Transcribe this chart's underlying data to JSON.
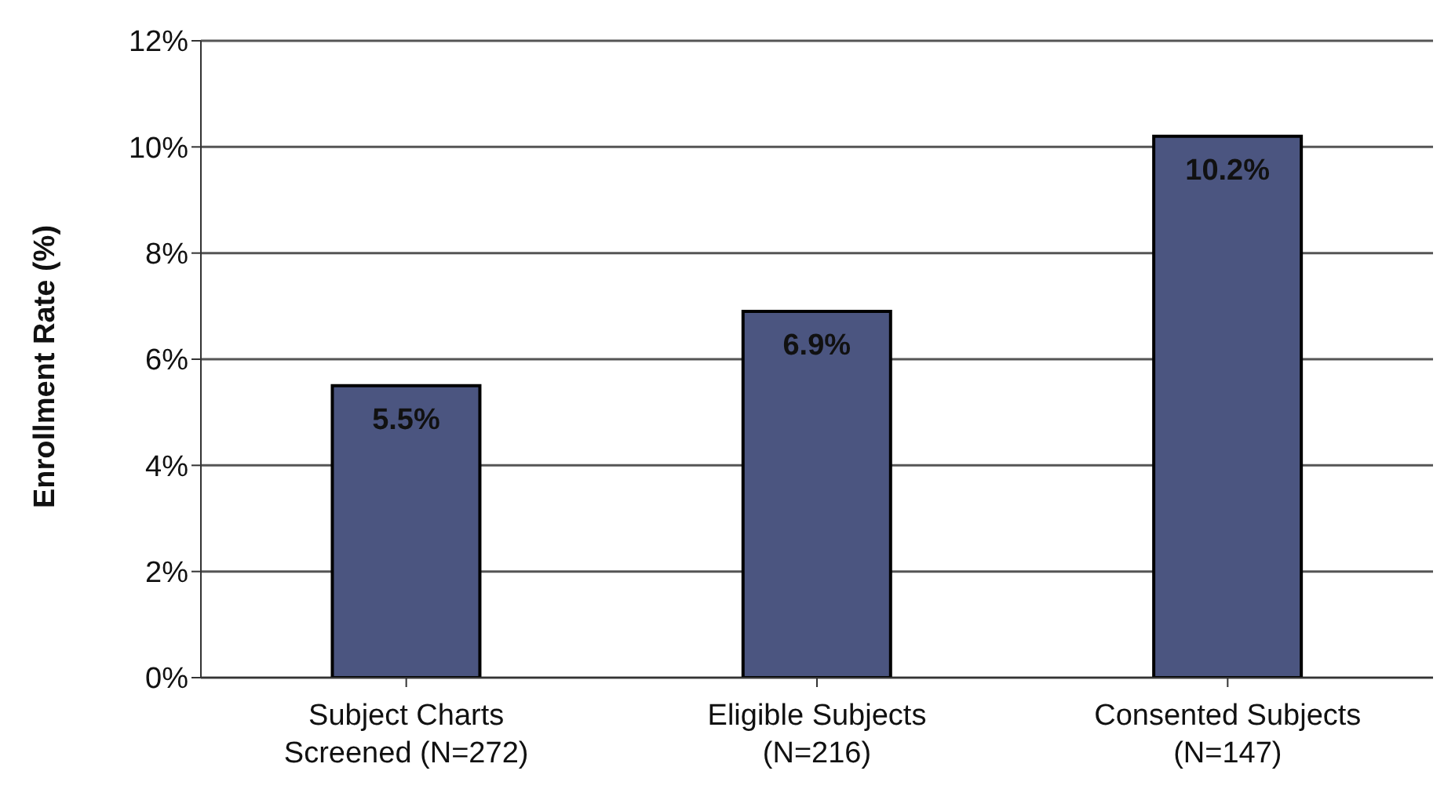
{
  "chart_data": {
    "type": "bar",
    "ylabel": "Enrollment Rate (%)",
    "categories": [
      "Subject Charts Screened (N=272)",
      "Eligible Subjects (N=216)",
      "Consented Subjects (N=147)"
    ],
    "values": [
      5.5,
      6.9,
      10.2
    ],
    "value_labels": [
      "5.5%",
      "6.9%",
      "10.2%"
    ],
    "color": "#4b5580",
    "ylim": [
      0,
      12
    ],
    "yticks": [
      {
        "value": 0,
        "label": "0%"
      },
      {
        "value": 2,
        "label": "2%"
      },
      {
        "value": 4,
        "label": "4%"
      },
      {
        "value": 6,
        "label": "6%"
      },
      {
        "value": 8,
        "label": "8%"
      },
      {
        "value": 10,
        "label": "10%"
      },
      {
        "value": 12,
        "label": "12%"
      }
    ],
    "grid": "y",
    "legend": false
  }
}
